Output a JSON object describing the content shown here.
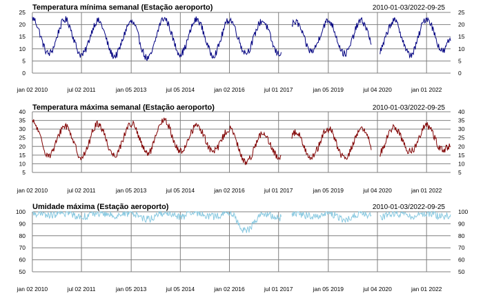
{
  "chart_data": [
    {
      "type": "line",
      "title": "Temperatura mínima semanal (Estação aeroporto)",
      "date_range": "2010-01-03/2022-09-25",
      "xlabel": "",
      "ylabel": "",
      "ylim": [
        0,
        25
      ],
      "yticks": [
        0,
        5,
        10,
        15,
        20,
        25
      ],
      "grid": true,
      "x_tick_labels": [
        "jan 02 2010",
        "jul 02 2011",
        "jan 05 2013",
        "jul 05 2014",
        "jan 02 2016",
        "jul 01 2017",
        "jan 05 2019",
        "jul 04 2020",
        "jan 01 2022"
      ],
      "color": "#000080",
      "series": [
        {
          "x": [
            "2010-01-03",
            "2010-07-04",
            "2011-01-02",
            "2011-07-03",
            "2012-01-01",
            "2012-07-01",
            "2013-01-06",
            "2013-07-07",
            "2014-01-05",
            "2014-07-06",
            "2015-01-04",
            "2015-07-05",
            "2016-01-03",
            "2016-07-03",
            "2017-01-01",
            "2017-07-02",
            "2018-01-07",
            "2018-07-01",
            "2019-01-06",
            "2019-07-07",
            "2020-01-05",
            "2020-07-05",
            "2021-01-03",
            "2021-07-04",
            "2022-01-02",
            "2022-07-03",
            "2022-09-25"
          ],
          "values": [
            22.5,
            8,
            22,
            7.5,
            21.5,
            7,
            21,
            6,
            22.5,
            8,
            22,
            7.5,
            22,
            8.5,
            21.5,
            8,
            21,
            9,
            21.5,
            8,
            21.5,
            8,
            21.5,
            7.5,
            22.5,
            9,
            14
          ]
        }
      ],
      "gaps": [
        [
          "2017-08-01",
          "2017-11-20"
        ],
        [
          "2020-05-01",
          "2020-08-01"
        ]
      ]
    },
    {
      "type": "line",
      "title": "Temperatura máxima semanal (Estação aeroporto)",
      "date_range": "2010-01-03/2022-09-25",
      "xlabel": "",
      "ylabel": "",
      "ylim": [
        5,
        40
      ],
      "yticks": [
        5,
        10,
        15,
        20,
        25,
        30,
        35,
        40
      ],
      "grid": true,
      "x_tick_labels": [
        "jan 02 2010",
        "jul 02 2011",
        "jan 05 2013",
        "jul 05 2014",
        "jan 02 2016",
        "jul 01 2017",
        "jan 05 2019",
        "jul 04 2020",
        "jan 01 2022"
      ],
      "color": "#800000",
      "series": [
        {
          "x": [
            "2010-01-03",
            "2010-07-04",
            "2011-01-02",
            "2011-07-03",
            "2012-01-01",
            "2012-07-01",
            "2013-01-06",
            "2013-07-07",
            "2014-01-05",
            "2014-07-06",
            "2015-01-04",
            "2015-07-05",
            "2016-01-03",
            "2016-07-03",
            "2017-01-01",
            "2017-07-02",
            "2018-01-07",
            "2018-07-01",
            "2019-01-06",
            "2019-07-07",
            "2020-01-05",
            "2020-07-05",
            "2021-01-03",
            "2021-07-04",
            "2022-01-02",
            "2022-07-03",
            "2022-09-25"
          ],
          "values": [
            34,
            15,
            32,
            14,
            33,
            15,
            33,
            16,
            35,
            17,
            32,
            17,
            30,
            11,
            27,
            14,
            28,
            14,
            30,
            13,
            30,
            15,
            31,
            17,
            32,
            18,
            20
          ]
        }
      ],
      "gaps": [
        [
          "2017-08-01",
          "2017-11-20"
        ],
        [
          "2020-05-01",
          "2020-08-01"
        ]
      ]
    },
    {
      "type": "line",
      "title": "Umidade máxima (Estação aeroporto)",
      "date_range": "2010-01-03/2022-09-25",
      "xlabel": "",
      "ylabel": "",
      "ylim": [
        50,
        100
      ],
      "yticks": [
        50,
        60,
        70,
        80,
        90,
        100
      ],
      "grid": true,
      "x_tick_labels": [
        "jan 02 2010",
        "jul 02 2011",
        "jan 05 2013",
        "jul 05 2014",
        "jan 02 2016",
        "jul 01 2017",
        "jan 05 2019",
        "jul 04 2020",
        "jan 01 2022"
      ],
      "color": "#87c8e0",
      "series": [
        {
          "x": [
            "2010-01-03",
            "2010-07-04",
            "2011-01-02",
            "2011-07-03",
            "2012-01-01",
            "2012-07-01",
            "2013-01-06",
            "2013-07-07",
            "2014-01-05",
            "2014-07-06",
            "2015-01-04",
            "2015-07-05",
            "2016-01-03",
            "2016-07-03",
            "2017-01-01",
            "2017-07-02",
            "2018-01-07",
            "2018-07-01",
            "2019-01-06",
            "2019-07-07",
            "2020-01-05",
            "2020-07-05",
            "2021-01-03",
            "2021-07-04",
            "2022-01-02",
            "2022-07-03",
            "2022-09-25"
          ],
          "values": [
            99,
            97,
            99,
            96,
            99,
            97,
            99,
            94,
            99,
            96,
            99,
            96,
            99,
            84,
            98,
            95,
            99,
            96,
            99,
            93,
            99,
            94,
            99,
            96,
            99,
            96,
            97
          ]
        }
      ],
      "gaps": [
        [
          "2017-08-01",
          "2017-11-20"
        ],
        [
          "2020-05-01",
          "2020-08-01"
        ]
      ]
    }
  ]
}
